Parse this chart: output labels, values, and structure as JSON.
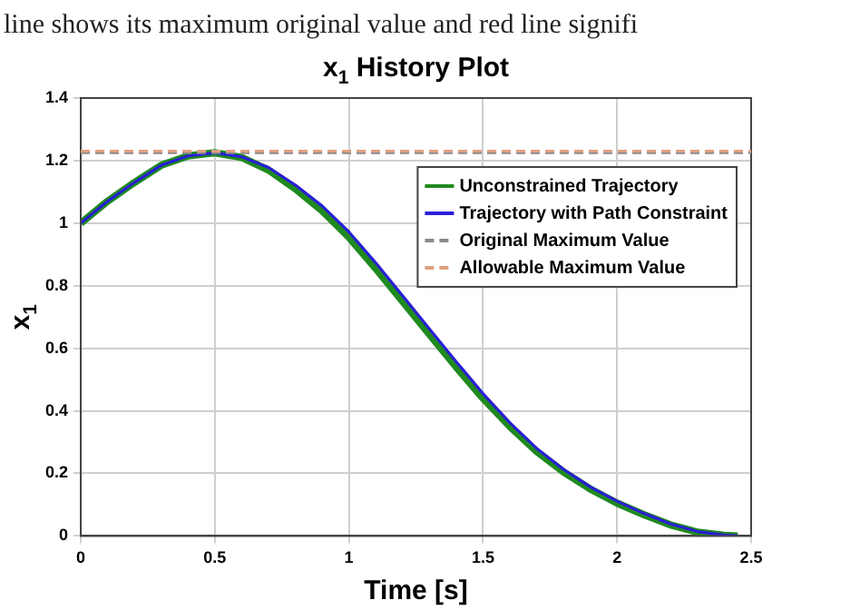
{
  "chart_data": {
    "type": "line",
    "title": "x$_{1}$ History Plot",
    "xlabel": "Time [s]",
    "ylabel": "x$_{1}$",
    "annotations": [
      "line shows its maximum original value and red line signifi"
    ],
    "x": [
      0,
      0.1,
      0.2,
      0.3,
      0.4,
      0.5,
      0.6,
      0.7,
      0.8,
      0.9,
      1.0,
      1.1,
      1.2,
      1.3,
      1.4,
      1.5,
      1.6,
      1.7,
      1.8,
      1.9,
      2.0,
      2.1,
      2.2,
      2.3,
      2.4,
      2.45
    ],
    "series": [
      {
        "name": "Unconstrained Trajectory",
        "color": "#1f8a1f",
        "values": [
          1.0,
          1.07,
          1.13,
          1.185,
          1.215,
          1.225,
          1.21,
          1.17,
          1.11,
          1.04,
          0.955,
          0.855,
          0.75,
          0.645,
          0.54,
          0.44,
          0.35,
          0.27,
          0.205,
          0.15,
          0.105,
          0.068,
          0.035,
          0.012,
          0.002,
          0
        ]
      },
      {
        "name": "Trajectory with Path Constraint",
        "color": "#2a1fd6",
        "values": [
          1.0,
          1.07,
          1.13,
          1.185,
          1.215,
          1.225,
          1.212,
          1.178,
          1.122,
          1.055,
          0.972,
          0.873,
          0.768,
          0.662,
          0.557,
          0.455,
          0.362,
          0.28,
          0.213,
          0.157,
          0.111,
          0.072,
          0.038,
          0.014,
          0.003,
          0
        ]
      }
    ],
    "ref_lines": [
      {
        "axis": "y",
        "value": 1.225,
        "label": "Original Maximum Value",
        "color": "#8a8a8a",
        "line_style": "dashed"
      },
      {
        "axis": "y",
        "value": 1.23,
        "label": "Allowable Maximum Value",
        "color": "#e0a080",
        "line_style": "dashed"
      }
    ],
    "xlim": [
      0,
      2.5
    ],
    "xticks": [
      0,
      0.5,
      1,
      1.5,
      2,
      2.5
    ],
    "ylim": [
      0,
      1.4
    ],
    "yticks": [
      0,
      0.2,
      0.4,
      0.6,
      0.8,
      1,
      1.2,
      1.4
    ],
    "grid": true,
    "legend": "top right",
    "line_style": "solid"
  }
}
